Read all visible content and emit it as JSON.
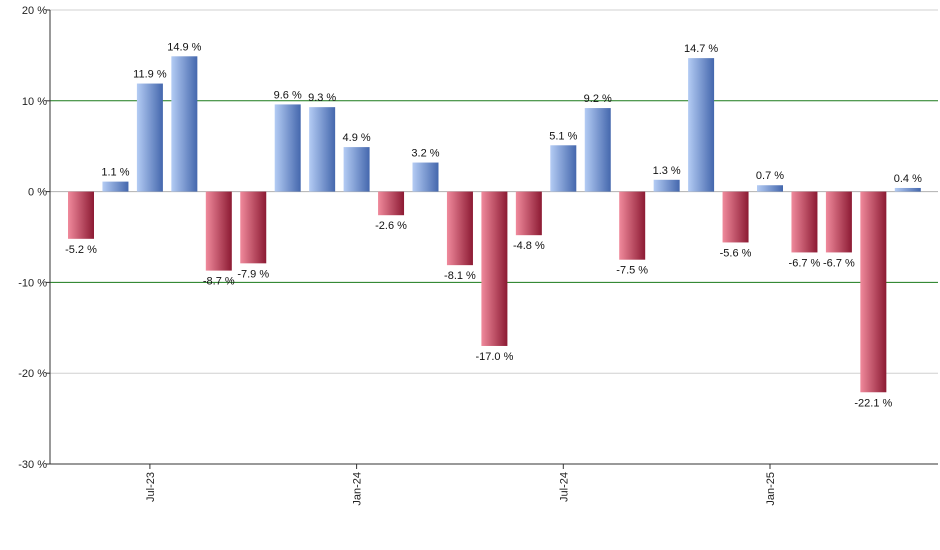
{
  "chart_data": {
    "type": "bar",
    "title": "",
    "xlabel": "",
    "ylabel": "",
    "ylim": [
      -30,
      20
    ],
    "yticks": [
      20,
      10,
      0,
      -10,
      -20,
      -30
    ],
    "ytick_suffix": " %",
    "grid": true,
    "reference_lines": [
      10,
      -10
    ],
    "x_tick_labels": [
      {
        "index": 2,
        "label": "Jul-23"
      },
      {
        "index": 8,
        "label": "Jan-24"
      },
      {
        "index": 14,
        "label": "Jul-24"
      },
      {
        "index": 20,
        "label": "Jan-25"
      }
    ],
    "values": [
      -5.2,
      1.1,
      11.9,
      14.9,
      -8.7,
      -7.9,
      9.6,
      9.3,
      4.9,
      -2.6,
      3.2,
      -8.1,
      -17.0,
      -4.8,
      5.1,
      9.2,
      -7.5,
      1.3,
      14.7,
      -5.6,
      0.7,
      -6.7,
      -6.7,
      -22.1,
      0.4
    ],
    "data_labels": [
      "-5.2 %",
      "1.1 %",
      "11.9 %",
      "14.9 %",
      "-8.7 %",
      "-7.9 %",
      "9.6 %",
      "9.3 %",
      "4.9 %",
      "-2.6 %",
      "3.2 %",
      "-8.1 %",
      "-17.0 %",
      "-4.8 %",
      "5.1 %",
      "9.2 %",
      "-7.5 %",
      "1.3 %",
      "14.7 %",
      "-5.6 %",
      "0.7 %",
      "-6.7 %",
      "-6.7 %",
      "-22.1 %",
      "0.4 %"
    ],
    "colors": {
      "positive_light": "#b4ccf4",
      "positive_dark": "#4467ad",
      "negative_light": "#f08a9c",
      "negative_dark": "#8c1a33",
      "zero_line": "#b0b0b0",
      "grid": "#d0d0d0",
      "ref_line": "#1a7a1a",
      "axis": "#333333"
    }
  }
}
